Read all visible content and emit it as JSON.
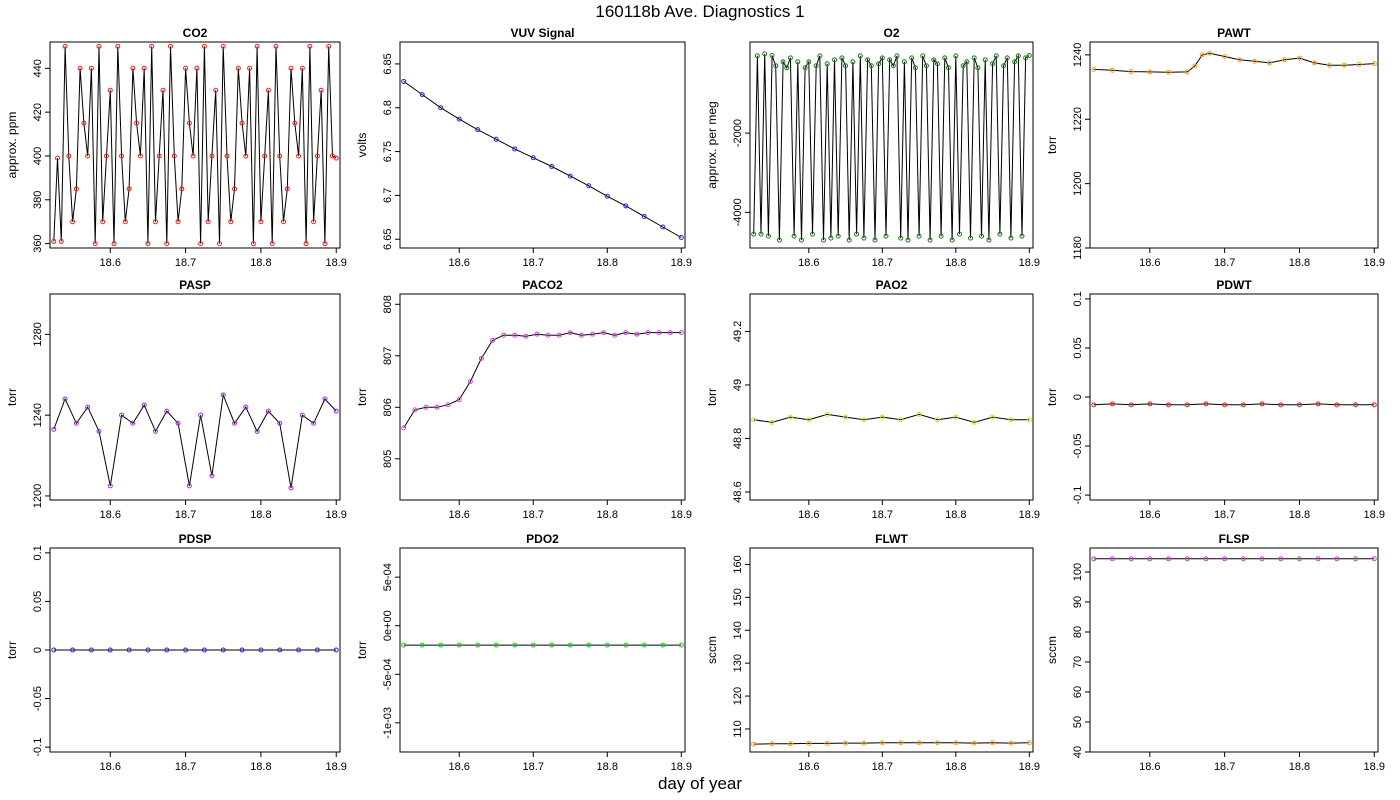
{
  "title": "160118b   Ave. Diagnostics 1",
  "xlabel": "day of year",
  "x_range": [
    18.52,
    18.905
  ],
  "x_ticks": [
    "18.6",
    "18.7",
    "18.8",
    "18.9"
  ],
  "chart_data": [
    {
      "type": "line",
      "title": "CO2",
      "ylabel": "approx. ppm",
      "ylim": [
        358,
        452
      ],
      "yticks": [
        360,
        380,
        400,
        420,
        440
      ],
      "line_color": "#000000",
      "marker_color": "#e8201c",
      "series": [
        {
          "name": "CO2",
          "x": [
            18.525,
            18.53,
            18.535,
            18.54,
            18.545,
            18.55,
            18.555,
            18.56,
            18.565,
            18.57,
            18.575,
            18.58,
            18.585,
            18.59,
            18.595,
            18.6,
            18.605,
            18.61,
            18.615,
            18.62,
            18.625,
            18.63,
            18.635,
            18.64,
            18.645,
            18.65,
            18.655,
            18.66,
            18.665,
            18.67,
            18.675,
            18.68,
            18.685,
            18.69,
            18.695,
            18.7,
            18.705,
            18.71,
            18.715,
            18.72,
            18.725,
            18.73,
            18.735,
            18.74,
            18.745,
            18.75,
            18.755,
            18.76,
            18.765,
            18.77,
            18.775,
            18.78,
            18.785,
            18.79,
            18.795,
            18.8,
            18.805,
            18.81,
            18.815,
            18.82,
            18.825,
            18.83,
            18.835,
            18.84,
            18.845,
            18.85,
            18.855,
            18.86,
            18.865,
            18.87,
            18.875,
            18.88,
            18.885,
            18.89,
            18.895,
            18.9
          ],
          "values": [
            361,
            399,
            361,
            450,
            400,
            370,
            385,
            440,
            415,
            400,
            440,
            360,
            450,
            370,
            400,
            430,
            360,
            450,
            400,
            370,
            385,
            440,
            415,
            400,
            440,
            360,
            450,
            370,
            400,
            430,
            360,
            450,
            400,
            370,
            385,
            440,
            415,
            400,
            440,
            360,
            450,
            370,
            400,
            430,
            360,
            450,
            400,
            370,
            385,
            440,
            415,
            400,
            440,
            360,
            450,
            370,
            400,
            430,
            360,
            450,
            400,
            370,
            385,
            440,
            415,
            400,
            440,
            360,
            450,
            370,
            400,
            430,
            360,
            450,
            400,
            399
          ]
        }
      ]
    },
    {
      "type": "line",
      "title": "VUV Signal",
      "ylabel": "volts",
      "ylim": [
        6.64,
        6.875
      ],
      "yticks": [
        6.65,
        6.7,
        6.75,
        6.8,
        6.85
      ],
      "line_color": "#000000",
      "marker_color": "#1c2bd0",
      "series": [
        {
          "name": "VUV Signal",
          "x": [
            18.525,
            18.55,
            18.575,
            18.6,
            18.625,
            18.65,
            18.675,
            18.7,
            18.725,
            18.75,
            18.775,
            18.8,
            18.825,
            18.85,
            18.875,
            18.9
          ],
          "values": [
            6.83,
            6.815,
            6.8,
            6.787,
            6.775,
            6.764,
            6.753,
            6.743,
            6.733,
            6.722,
            6.711,
            6.699,
            6.688,
            6.676,
            6.664,
            6.652
          ]
        }
      ]
    },
    {
      "type": "line",
      "title": "O2",
      "ylabel": "approx. per meg",
      "ylim": [
        -4900,
        300
      ],
      "yticks": [
        -4000,
        -2000
      ],
      "line_color": "#000000",
      "marker_color": "#1e7a1e",
      "series": [
        {
          "name": "O2",
          "x": [
            18.525,
            18.53,
            18.535,
            18.54,
            18.545,
            18.55,
            18.555,
            18.56,
            18.565,
            18.57,
            18.575,
            18.58,
            18.585,
            18.59,
            18.595,
            18.6,
            18.605,
            18.61,
            18.615,
            18.62,
            18.625,
            18.63,
            18.635,
            18.64,
            18.645,
            18.65,
            18.655,
            18.66,
            18.665,
            18.67,
            18.675,
            18.68,
            18.685,
            18.69,
            18.695,
            18.7,
            18.705,
            18.71,
            18.715,
            18.72,
            18.725,
            18.73,
            18.735,
            18.74,
            18.745,
            18.75,
            18.755,
            18.76,
            18.765,
            18.77,
            18.775,
            18.78,
            18.785,
            18.79,
            18.795,
            18.8,
            18.805,
            18.81,
            18.815,
            18.82,
            18.825,
            18.83,
            18.835,
            18.84,
            18.845,
            18.85,
            18.855,
            18.86,
            18.865,
            18.87,
            18.875,
            18.88,
            18.885,
            18.89,
            18.895,
            18.9
          ],
          "values": [
            -4550,
            -50,
            -4550,
            0,
            -4600,
            -40,
            -300,
            -4700,
            -200,
            -350,
            -100,
            -4600,
            -200,
            -4700,
            -350,
            -200,
            -4550,
            -300,
            -50,
            -4700,
            -250,
            -4650,
            -150,
            -4600,
            -100,
            -300,
            -4700,
            -200,
            -4550,
            -50,
            -4650,
            -150,
            -300,
            -4700,
            -250,
            -100,
            -4600,
            -150,
            -300,
            -50,
            -4650,
            -200,
            -4700,
            -100,
            -350,
            -4600,
            -50,
            -300,
            -4700,
            -150,
            -250,
            -4600,
            -100,
            -350,
            -4700,
            -50,
            -4550,
            -300,
            -200,
            -4650,
            -100,
            -350,
            -4600,
            -150,
            -4700,
            -250,
            -50,
            -4550,
            -300,
            -100,
            -4650,
            -200,
            -50,
            -4600,
            -100,
            -40
          ]
        }
      ]
    },
    {
      "type": "line",
      "title": "PAWT",
      "ylabel": "torr",
      "ylim": [
        1180,
        1244
      ],
      "yticks": [
        1180,
        1200,
        1220,
        1240
      ],
      "line_color": "#000000",
      "marker_color": "#f5a21c",
      "series": [
        {
          "name": "PAWT",
          "x": [
            18.525,
            18.55,
            18.575,
            18.6,
            18.625,
            18.65,
            18.66,
            18.67,
            18.68,
            18.7,
            18.72,
            18.74,
            18.76,
            18.78,
            18.8,
            18.82,
            18.84,
            18.86,
            18.88,
            18.9
          ],
          "values": [
            1235.5,
            1235.2,
            1234.8,
            1234.7,
            1234.6,
            1234.7,
            1236.5,
            1240,
            1240.5,
            1239.5,
            1238.5,
            1238,
            1237.5,
            1238.5,
            1239,
            1237.5,
            1236.8,
            1236.8,
            1237,
            1237.3
          ]
        }
      ]
    },
    {
      "type": "line",
      "title": "PASP",
      "ylabel": "torr",
      "ylim": [
        1198,
        1300
      ],
      "yticks": [
        1200,
        1240,
        1280
      ],
      "line_color": "#000000",
      "marker_color": "#9b30d9",
      "series": [
        {
          "name": "PASP",
          "x": [
            18.525,
            18.54,
            18.555,
            18.57,
            18.585,
            18.6,
            18.615,
            18.63,
            18.645,
            18.66,
            18.675,
            18.69,
            18.705,
            18.72,
            18.735,
            18.75,
            18.765,
            18.78,
            18.795,
            18.81,
            18.825,
            18.84,
            18.855,
            18.87,
            18.885,
            18.9
          ],
          "values": [
            1233,
            1248,
            1236,
            1244,
            1232,
            1205,
            1240,
            1236,
            1245,
            1232,
            1242,
            1236,
            1205,
            1240,
            1210,
            1250,
            1236,
            1244,
            1232,
            1242,
            1236,
            1204,
            1240,
            1236,
            1248,
            1242
          ]
        }
      ]
    },
    {
      "type": "line",
      "title": "PACO2",
      "ylabel": "torr",
      "ylim": [
        804.2,
        808.2
      ],
      "yticks": [
        805,
        806,
        807,
        808
      ],
      "line_color": "#000000",
      "marker_color": "#d444d4",
      "series": [
        {
          "name": "PACO2",
          "x": [
            18.525,
            18.54,
            18.555,
            18.57,
            18.585,
            18.6,
            18.615,
            18.63,
            18.645,
            18.66,
            18.675,
            18.69,
            18.705,
            18.72,
            18.735,
            18.75,
            18.765,
            18.78,
            18.795,
            18.81,
            18.825,
            18.84,
            18.855,
            18.87,
            18.885,
            18.9
          ],
          "values": [
            805.6,
            805.95,
            806,
            806,
            806.05,
            806.15,
            806.5,
            806.95,
            807.3,
            807.4,
            807.4,
            807.38,
            807.42,
            807.4,
            807.4,
            807.45,
            807.4,
            807.42,
            807.45,
            807.4,
            807.45,
            807.42,
            807.45,
            807.45,
            807.45,
            807.45
          ]
        }
      ]
    },
    {
      "type": "line",
      "title": "PAO2",
      "ylabel": "torr",
      "ylim": [
        48.57,
        49.34
      ],
      "yticks": [
        48.6,
        48.8,
        49.0,
        49.2
      ],
      "line_color": "#000000",
      "marker_color": "#d8d820",
      "series": [
        {
          "name": "PAO2",
          "x": [
            18.525,
            18.55,
            18.575,
            18.6,
            18.625,
            18.65,
            18.675,
            18.7,
            18.725,
            18.75,
            18.775,
            18.8,
            18.825,
            18.85,
            18.875,
            18.9
          ],
          "values": [
            48.87,
            48.86,
            48.88,
            48.87,
            48.89,
            48.88,
            48.87,
            48.88,
            48.87,
            48.89,
            48.87,
            48.88,
            48.86,
            48.88,
            48.87,
            48.87
          ]
        }
      ]
    },
    {
      "type": "line",
      "title": "PDWT",
      "ylabel": "torr",
      "ylim": [
        -0.105,
        0.105
      ],
      "yticks": [
        -0.1,
        -0.05,
        0.0,
        0.05,
        0.1
      ],
      "line_color": "#000000",
      "marker_color": "#e8201c",
      "series": [
        {
          "name": "PDWT",
          "x": [
            18.525,
            18.55,
            18.575,
            18.6,
            18.625,
            18.65,
            18.675,
            18.7,
            18.725,
            18.75,
            18.775,
            18.8,
            18.825,
            18.85,
            18.875,
            18.9
          ],
          "values": [
            -0.008,
            -0.007,
            -0.008,
            -0.007,
            -0.008,
            -0.008,
            -0.007,
            -0.008,
            -0.008,
            -0.007,
            -0.008,
            -0.008,
            -0.007,
            -0.008,
            -0.008,
            -0.008
          ]
        }
      ]
    },
    {
      "type": "line",
      "title": "PDSP",
      "ylabel": "torr",
      "ylim": [
        -0.105,
        0.105
      ],
      "yticks": [
        -0.1,
        -0.05,
        0.0,
        0.05,
        0.1
      ],
      "line_color": "#000000",
      "marker_color": "#1c2bd0",
      "series": [
        {
          "name": "PDSP",
          "x": [
            18.525,
            18.55,
            18.575,
            18.6,
            18.625,
            18.65,
            18.675,
            18.7,
            18.725,
            18.75,
            18.775,
            18.8,
            18.825,
            18.85,
            18.875,
            18.9
          ],
          "values": [
            0.0,
            0.0,
            0.0,
            0.0,
            0.0,
            0.0,
            0.0,
            0.0,
            0.0,
            0.0,
            0.0,
            0.0,
            0.0,
            0.0,
            0.0,
            0.0
          ]
        }
      ]
    },
    {
      "type": "line",
      "title": "PDO2",
      "ylabel": "torr",
      "ylim": [
        -0.0013,
        0.0008
      ],
      "yticks": [
        -0.001,
        -0.0005,
        0.0,
        0.0005
      ],
      "ytick_labels": [
        "-1e-03",
        "-5e-04",
        "0e+00",
        "5e-04"
      ],
      "line_color": "#000000",
      "marker_color": "#22cc22",
      "series": [
        {
          "name": "PDO2",
          "x": [
            18.525,
            18.55,
            18.575,
            18.6,
            18.625,
            18.65,
            18.675,
            18.7,
            18.725,
            18.75,
            18.775,
            18.8,
            18.825,
            18.85,
            18.875,
            18.9
          ],
          "values": [
            -0.0002,
            -0.0002,
            -0.0002,
            -0.0002,
            -0.0002,
            -0.0002,
            -0.0002,
            -0.0002,
            -0.0002,
            -0.0002,
            -0.0002,
            -0.0002,
            -0.0002,
            -0.0002,
            -0.0002,
            -0.0002
          ]
        }
      ]
    },
    {
      "type": "line",
      "title": "FLWT",
      "ylabel": "sccm",
      "ylim": [
        103,
        165
      ],
      "yticks": [
        110,
        120,
        130,
        140,
        150,
        160
      ],
      "line_color": "#000000",
      "marker_color": "#f5a21c",
      "series": [
        {
          "name": "FLWT",
          "x": [
            18.525,
            18.55,
            18.575,
            18.6,
            18.625,
            18.65,
            18.675,
            18.7,
            18.725,
            18.75,
            18.775,
            18.8,
            18.825,
            18.85,
            18.875,
            18.9
          ],
          "values": [
            105.4,
            105.5,
            105.5,
            105.6,
            105.6,
            105.7,
            105.7,
            105.8,
            105.8,
            105.8,
            105.8,
            105.8,
            105.7,
            105.8,
            105.7,
            105.8
          ]
        }
      ]
    },
    {
      "type": "line",
      "title": "FLSP",
      "ylabel": "sccm",
      "ylim": [
        40,
        108
      ],
      "yticks": [
        40,
        50,
        60,
        70,
        80,
        90,
        100
      ],
      "line_color": "#000000",
      "marker_color": "#d444d4",
      "series": [
        {
          "name": "FLSP",
          "x": [
            18.525,
            18.55,
            18.575,
            18.6,
            18.625,
            18.65,
            18.675,
            18.7,
            18.725,
            18.75,
            18.775,
            18.8,
            18.825,
            18.85,
            18.875,
            18.9
          ],
          "values": [
            104.4,
            104.4,
            104.4,
            104.4,
            104.4,
            104.4,
            104.4,
            104.4,
            104.4,
            104.4,
            104.4,
            104.4,
            104.4,
            104.4,
            104.4,
            104.4
          ]
        }
      ]
    }
  ]
}
